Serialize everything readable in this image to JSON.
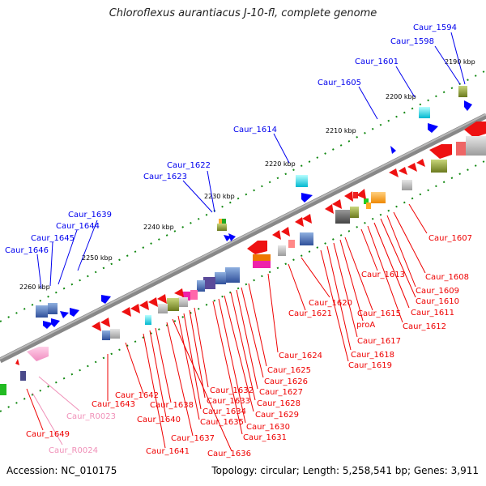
{
  "title": "Chloroflexus aurantiacus J-10-fl, complete genome",
  "footer": {
    "accession": "Accession: NC_010175",
    "summary": "Topology: circular; Length: 5,258,541 bp; Genes: 3,911"
  },
  "colors": {
    "forward_label": "#0000ee",
    "reverse_label": "#ee0000",
    "rna_label": "#f090b8",
    "forward_feature": "#0000ff",
    "reverse_feature": "#ff0000",
    "backbone": "#888888",
    "tick": "#118811"
  },
  "ticks": [
    "2190 kbp",
    "2200 kbp",
    "2210 kbp",
    "2220 kbp",
    "2230 kbp",
    "2240 kbp",
    "2250 kbp",
    "2260 kbp"
  ],
  "forward_genes": [
    "Caur_1594",
    "Caur_1598",
    "Caur_1601",
    "Caur_1605",
    "Caur_1614",
    "Caur_1622",
    "Caur_1623",
    "Caur_1639",
    "Caur_1644",
    "Caur_1645",
    "Caur_1646"
  ],
  "reverse_genes": [
    "Caur_1607",
    "Caur_1608",
    "Caur_1609",
    "Caur_1610",
    "Caur_1611",
    "Caur_1612",
    "Caur_1613",
    "Caur_1615",
    "proA",
    "Caur_1617",
    "Caur_1618",
    "Caur_1619",
    "Caur_1620",
    "Caur_1621",
    "Caur_1624",
    "Caur_1625",
    "Caur_1626",
    "Caur_1627",
    "Caur_1628",
    "Caur_1629",
    "Caur_1630",
    "Caur_1631",
    "Caur_1632",
    "Caur_1633",
    "Caur_1634",
    "Caur_1635",
    "Caur_1636",
    "Caur_1637",
    "Caur_1638",
    "Caur_1640",
    "Caur_1641",
    "Caur_1642",
    "Caur_1643",
    "Caur_1649"
  ],
  "rna_genes": [
    "Caur_R0023",
    "Caur_R0024"
  ]
}
